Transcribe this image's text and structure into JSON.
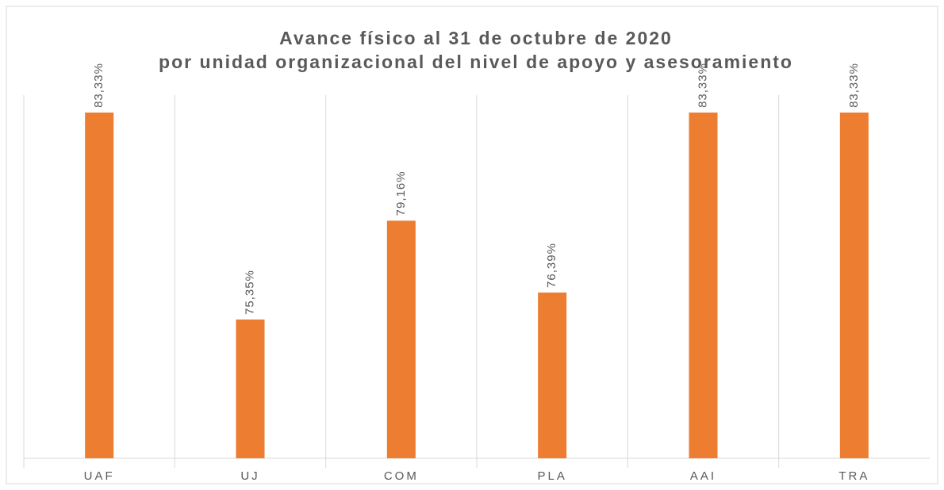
{
  "chart_data": {
    "type": "bar",
    "title": [
      "Avance físico al 31 de octubre de 2020",
      "por unidad organizacional del nivel de apoyo y asesoramiento"
    ],
    "categories": [
      "UAF",
      "UJ",
      "COM",
      "PLA",
      "AAI",
      "TRA"
    ],
    "values": [
      83.33,
      75.35,
      79.16,
      76.39,
      83.33,
      83.33
    ],
    "value_labels": [
      "83,33%",
      "75,35%",
      "79,16%",
      "76,39%",
      "83,33%",
      "83,33%"
    ],
    "color": "#ed7d31",
    "ylim": [
      70,
      84
    ]
  }
}
